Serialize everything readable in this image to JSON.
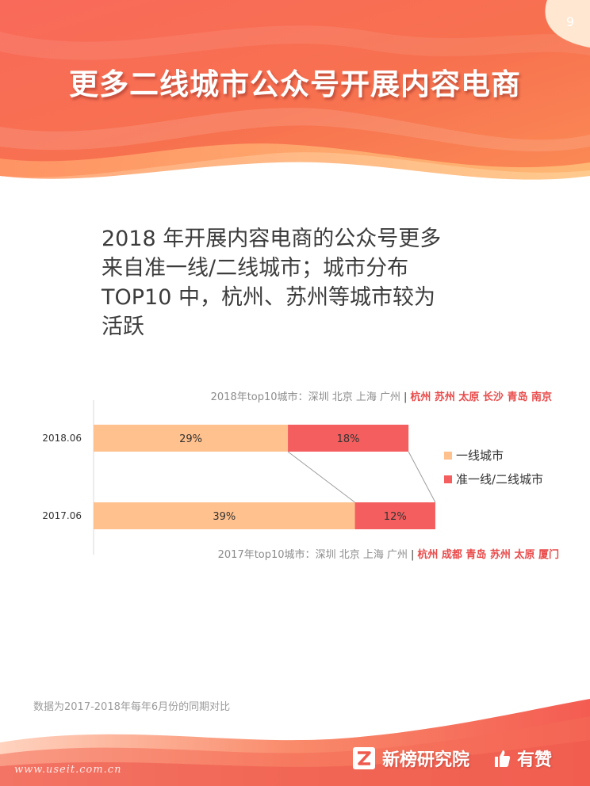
{
  "page": {
    "number": "9",
    "title": "更多二线城市公众号开展内容电商",
    "headline_lines": [
      "2018 年开展内容电商的公众号更多",
      "来自准一线/二线城市；城市分布",
      "TOP10 中，杭州、苏州等城市较为",
      "活跃"
    ],
    "footnote": "数据为2017-2018年每年6月份的同期对比",
    "brand": {
      "name": "新榜研究院",
      "partner": "有赞",
      "watermark": "www.useit.com.cn"
    }
  },
  "colors": {
    "tier1": "#ffc18d",
    "quasi_tier2": "#f45e5e",
    "top10_highlight": "#e94b4b",
    "top10_gray": "#8c8c8c"
  },
  "chart_data": {
    "type": "bar",
    "orientation": "horizontal",
    "stacked": true,
    "categories": [
      "2018.06",
      "2017.06"
    ],
    "series": [
      {
        "name": "一线城市",
        "values": [
          29,
          39
        ],
        "labels": [
          "29%",
          "39%"
        ],
        "color": "#ffc18d"
      },
      {
        "name": "准一线/二线城市",
        "values": [
          18,
          12
        ],
        "labels": [
          "18%",
          "12%"
        ],
        "color": "#f45e5e"
      }
    ],
    "unit": "%",
    "legend_position": "right",
    "grid": false,
    "annotations": [
      {
        "category": "2018.06",
        "prefix": "2018年top10城市：",
        "gray_cities": "深圳 北京 上海 广州",
        "separator": "|",
        "red_cities": "杭州 苏州 太原 长沙 青岛 南京"
      },
      {
        "category": "2017.06",
        "prefix": "2017年top10城市：",
        "gray_cities": "深圳 北京 上海 广州",
        "separator": "|",
        "red_cities": "杭州 成都 青岛 苏州 太原 厦门"
      }
    ]
  }
}
